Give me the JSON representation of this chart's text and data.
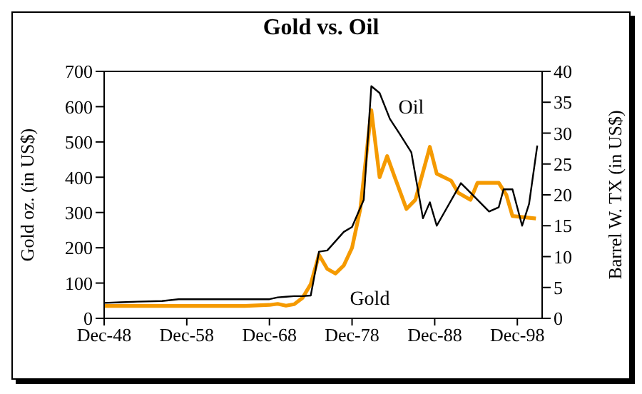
{
  "chart_data": {
    "type": "line",
    "title": "Gold vs. Oil",
    "ylabel": "Gold oz. (in US$)",
    "y2label": "Barrel W. TX (in US$)",
    "xlim": [
      "1948-12",
      "2001-12"
    ],
    "xticks": [
      {
        "value": "1948-12",
        "label": "Dec-48"
      },
      {
        "value": "1958-12",
        "label": "Dec-58"
      },
      {
        "value": "1968-12",
        "label": "Dec-68"
      },
      {
        "value": "1978-12",
        "label": "Dec-78"
      },
      {
        "value": "1988-12",
        "label": "Dec-88"
      },
      {
        "value": "1998-12",
        "label": "Dec-98"
      }
    ],
    "ylim": [
      0,
      700
    ],
    "yticks": [
      0,
      100,
      200,
      300,
      400,
      500,
      600,
      700
    ],
    "y2lim": [
      0,
      40
    ],
    "y2ticks": [
      0,
      5,
      10,
      15,
      20,
      25,
      30,
      35,
      40
    ],
    "legend": false,
    "grid": false,
    "marker": "none",
    "series": [
      {
        "name": "Gold",
        "color": "#f59a00",
        "x": [
          "1948-12",
          "1950-12",
          "1952-12",
          "1955-12",
          "1960-12",
          "1965-12",
          "1968-12",
          "1969-12",
          "1970-12",
          "1971-12",
          "1972-12",
          "1973-12",
          "1974-12",
          "1975-12",
          "1976-12",
          "1977-12",
          "1978-12",
          "1979-12",
          "1981-04",
          "1982-04",
          "1983-03",
          "1984-02",
          "1985-07",
          "1986-08",
          "1988-05",
          "1989-03",
          "1990-12",
          "1991-10",
          "1993-04",
          "1994-02",
          "1996-09",
          "1997-08",
          "1998-05",
          "2001-03"
        ],
        "values": [
          35,
          35,
          35,
          35,
          35,
          35,
          38,
          41,
          36,
          40,
          58,
          97,
          180,
          140,
          127,
          150,
          200,
          310,
          590,
          400,
          460,
          400,
          310,
          336,
          486,
          410,
          390,
          356,
          336,
          384,
          384,
          350,
          290,
          283
        ]
      },
      {
        "name": "Oil",
        "color": "#000000",
        "axis": "y2",
        "x": [
          "1948-12",
          "1950-12",
          "1952-12",
          "1955-12",
          "1957-12",
          "1965-12",
          "1968-12",
          "1969-12",
          "1970-12",
          "1971-12",
          "1972-12",
          "1973-12",
          "1974-12",
          "1975-12",
          "1976-12",
          "1977-12",
          "1978-12",
          "1980-05",
          "1981-04",
          "1982-04",
          "1983-07",
          "1984-09",
          "1986-02",
          "1987-07",
          "1988-05",
          "1989-03",
          "1992-02",
          "1992-12",
          "1995-07",
          "1996-09",
          "1997-04",
          "1998-05",
          "1999-07",
          "2000-05",
          "2001-05"
        ],
        "values": [
          2.5,
          2.6,
          2.7,
          2.8,
          3.1,
          3.1,
          3.1,
          3.4,
          3.5,
          3.6,
          3.6,
          3.7,
          10.8,
          11.0,
          12.5,
          14.0,
          14.8,
          19.2,
          37.6,
          36.5,
          32.3,
          29.9,
          26.9,
          16.2,
          18.8,
          15.0,
          21.9,
          20.8,
          17.3,
          18.0,
          20.9,
          20.9,
          15.0,
          18.5,
          28.0
        ]
      }
    ]
  }
}
